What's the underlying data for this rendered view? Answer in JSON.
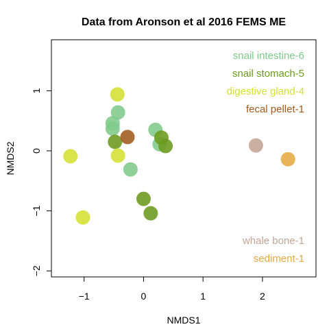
{
  "chart_data": {
    "type": "scatter",
    "title": "Data from Aronson et al 2016 FEMS ME",
    "xlabel": "NMDS1",
    "ylabel": "NMDS2",
    "xlim": [
      -1.55,
      2.9
    ],
    "ylim": [
      -2.1,
      1.85
    ],
    "xticks": [
      -1,
      0,
      1,
      2
    ],
    "yticks": [
      -2,
      -1,
      0,
      1
    ],
    "grid": false,
    "legend_upper": "top-right",
    "legend_lower": "bottom-right",
    "series": [
      {
        "name": "snail intestine-6",
        "color": "#7fc98a",
        "legend_position": "upper",
        "points": [
          {
            "x": -0.52,
            "y": 0.46
          },
          {
            "x": -0.52,
            "y": 0.37
          },
          {
            "x": -0.43,
            "y": 0.64
          },
          {
            "x": -0.22,
            "y": -0.31
          },
          {
            "x": 0.2,
            "y": 0.35
          },
          {
            "x": 0.27,
            "y": 0.11
          }
        ]
      },
      {
        "name": "snail stomach-5",
        "color": "#6b9a1e",
        "legend_position": "upper",
        "points": [
          {
            "x": -0.48,
            "y": 0.15
          },
          {
            "x": 0.3,
            "y": 0.22
          },
          {
            "x": 0.37,
            "y": 0.08
          },
          {
            "x": 0.0,
            "y": -0.8
          },
          {
            "x": 0.12,
            "y": -1.04
          }
        ]
      },
      {
        "name": "digestive gland-4",
        "color": "#d4e032",
        "legend_position": "upper",
        "points": [
          {
            "x": -0.44,
            "y": 0.94
          },
          {
            "x": -0.43,
            "y": -0.08
          },
          {
            "x": -1.23,
            "y": -0.09
          },
          {
            "x": -1.02,
            "y": -1.11
          }
        ]
      },
      {
        "name": "fecal pellet-1",
        "color": "#a05a1e",
        "legend_position": "upper",
        "points": [
          {
            "x": -0.27,
            "y": 0.23
          }
        ]
      },
      {
        "name": "whale bone-1",
        "color": "#c4a494",
        "legend_position": "lower",
        "points": [
          {
            "x": 1.89,
            "y": 0.09
          }
        ]
      },
      {
        "name": "sediment-1",
        "color": "#e6a840",
        "legend_position": "lower",
        "points": [
          {
            "x": 2.43,
            "y": -0.14
          }
        ]
      }
    ]
  }
}
